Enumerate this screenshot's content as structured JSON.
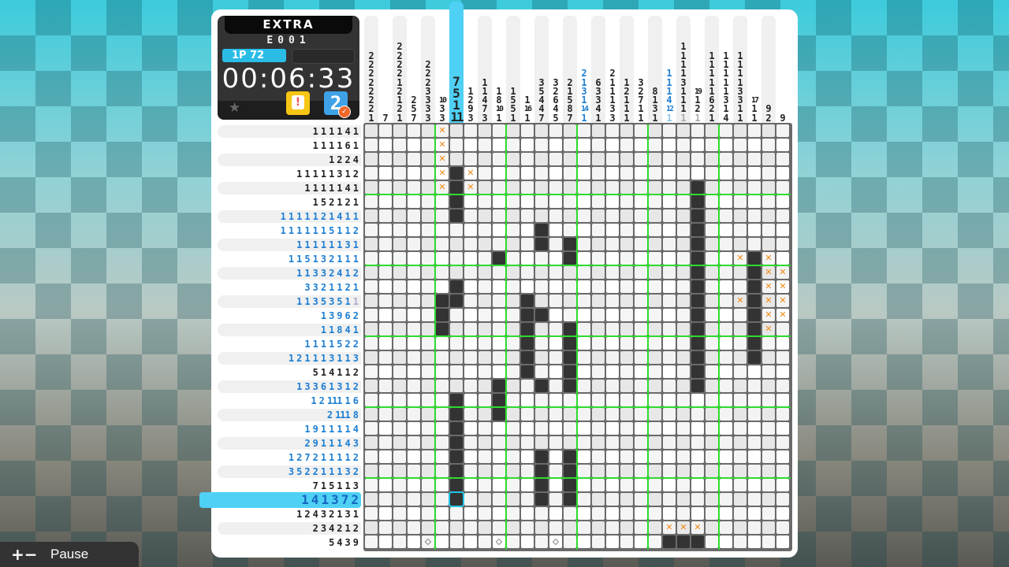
{
  "header": {
    "mode": "EXTRA",
    "puzzle_id": "E001",
    "player": "1P  72",
    "timer": "00:06:33",
    "icons": [
      "star-icon",
      "grid-overview-icon",
      "hint-icon",
      "check-icon"
    ],
    "check_icon_glyph": "2",
    "hint_icon_glyph": "!"
  },
  "colors": {
    "accent": "#4fd0f5",
    "filled": "#333333",
    "cross": "#f08a14",
    "guide": "#2edb2e",
    "clue_blue": "#1d7ed2"
  },
  "column_clues": [
    {
      "nums": [
        "2",
        "2",
        "2",
        "2",
        "2",
        "2",
        "2",
        "1"
      ],
      "color": "black"
    },
    {
      "nums": [
        "7"
      ],
      "color": "black"
    },
    {
      "nums": [
        "2",
        "2",
        "2",
        "2",
        "1",
        "2",
        "1",
        "2",
        "1"
      ],
      "color": "black"
    },
    {
      "nums": [
        "2",
        "5",
        "7"
      ],
      "color": "black"
    },
    {
      "nums": [
        "2",
        "2",
        "2",
        "3",
        "3",
        "3",
        "3"
      ],
      "color": "black"
    },
    {
      "nums": [
        "10",
        "3",
        "3"
      ],
      "color": "black"
    },
    {
      "nums": [
        "7",
        "5",
        "1",
        "11"
      ],
      "color": "black",
      "highlighted": true
    },
    {
      "nums": [
        "1",
        "2",
        "9",
        "3"
      ],
      "color": "black"
    },
    {
      "nums": [
        "1",
        "1",
        "4",
        "7",
        "3"
      ],
      "color": "black"
    },
    {
      "nums": [
        "1",
        "8",
        "10",
        "1"
      ],
      "color": "black"
    },
    {
      "nums": [
        "1",
        "5",
        "5",
        "1"
      ],
      "color": "black"
    },
    {
      "nums": [
        "1",
        "16",
        "1"
      ],
      "color": "black"
    },
    {
      "nums": [
        "3",
        "5",
        "4",
        "4",
        "7"
      ],
      "color": "black"
    },
    {
      "nums": [
        "3",
        "2",
        "6",
        "4",
        "5"
      ],
      "color": "black"
    },
    {
      "nums": [
        "2",
        "1",
        "5",
        "8",
        "7"
      ],
      "color": "black"
    },
    {
      "nums": [
        "2",
        "1",
        "3",
        "1",
        "14",
        "1"
      ],
      "color": "blue"
    },
    {
      "nums": [
        "6",
        "3",
        "3",
        "4",
        "1"
      ],
      "color": "black"
    },
    {
      "nums": [
        "2",
        "1",
        "1",
        "1",
        "3",
        "3"
      ],
      "color": "black"
    },
    {
      "nums": [
        "1",
        "2",
        "1",
        "1",
        "1"
      ],
      "color": "black"
    },
    {
      "nums": [
        "3",
        "2",
        "7",
        "1",
        "1"
      ],
      "color": "black"
    },
    {
      "nums": [
        "8",
        "1",
        "3",
        "1"
      ],
      "color": "black"
    },
    {
      "nums": [
        "1",
        "1",
        "1",
        "4",
        "12",
        "1"
      ],
      "color": "blue",
      "dim_last": true
    },
    {
      "nums": [
        "1",
        "1",
        "1",
        "1",
        "3",
        "1",
        "1",
        "1",
        "1"
      ],
      "color": "black",
      "dim_last": true
    },
    {
      "nums": [
        "19",
        "1",
        "2",
        "1"
      ],
      "color": "black",
      "dim_last": true
    },
    {
      "nums": [
        "1",
        "1",
        "1",
        "1",
        "1",
        "6",
        "2",
        "1"
      ],
      "color": "black"
    },
    {
      "nums": [
        "1",
        "1",
        "1",
        "1",
        "1",
        "3",
        "1",
        "4"
      ],
      "color": "black"
    },
    {
      "nums": [
        "1",
        "1",
        "1",
        "1",
        "3",
        "3",
        "1",
        "1"
      ],
      "color": "black"
    },
    {
      "nums": [
        "17",
        "1",
        "1"
      ],
      "color": "black"
    },
    {
      "nums": [
        "9",
        "2"
      ],
      "color": "black"
    },
    {
      "nums": [
        "9"
      ],
      "color": "black"
    }
  ],
  "row_clues": [
    {
      "nums": [
        "1",
        "1",
        "1",
        "1",
        "4",
        "1"
      ],
      "color": "black"
    },
    {
      "nums": [
        "1",
        "1",
        "1",
        "1",
        "6",
        "1"
      ],
      "color": "black"
    },
    {
      "nums": [
        "1",
        "2",
        "2",
        "4"
      ],
      "color": "black"
    },
    {
      "nums": [
        "1",
        "1",
        "1",
        "1",
        "1",
        "3",
        "1",
        "2"
      ],
      "color": "black"
    },
    {
      "nums": [
        "1",
        "1",
        "1",
        "1",
        "1",
        "4",
        "1"
      ],
      "color": "black"
    },
    {
      "nums": [
        "1",
        "5",
        "2",
        "1",
        "2",
        "1"
      ],
      "color": "black"
    },
    {
      "nums": [
        "1",
        "1",
        "1",
        "1",
        "1",
        "2",
        "1",
        "4",
        "1",
        "1"
      ],
      "color": "blue"
    },
    {
      "nums": [
        "1",
        "1",
        "1",
        "1",
        "1",
        "1",
        "5",
        "1",
        "1",
        "2"
      ],
      "color": "blue"
    },
    {
      "nums": [
        "1",
        "1",
        "1",
        "1",
        "1",
        "1",
        "3",
        "1"
      ],
      "color": "blue"
    },
    {
      "nums": [
        "1",
        "1",
        "5",
        "1",
        "3",
        "2",
        "1",
        "1",
        "1"
      ],
      "color": "blue"
    },
    {
      "nums": [
        "1",
        "1",
        "3",
        "3",
        "2",
        "4",
        "1",
        "2"
      ],
      "color": "blue"
    },
    {
      "nums": [
        "3",
        "3",
        "2",
        "1",
        "1",
        "2",
        "1"
      ],
      "color": "blue"
    },
    {
      "nums": [
        "1",
        "1",
        "3",
        "5",
        "3",
        "5",
        "1",
        "1"
      ],
      "color": "blue",
      "dim_last": true
    },
    {
      "nums": [
        "1",
        "3",
        "9",
        "6",
        "2"
      ],
      "color": "blue"
    },
    {
      "nums": [
        "1",
        "1",
        "8",
        "4",
        "1"
      ],
      "color": "blue"
    },
    {
      "nums": [
        "1",
        "1",
        "1",
        "1",
        "5",
        "2",
        "2"
      ],
      "color": "blue"
    },
    {
      "nums": [
        "1",
        "2",
        "1",
        "1",
        "1",
        "3",
        "1",
        "1",
        "3"
      ],
      "color": "blue"
    },
    {
      "nums": [
        "5",
        "1",
        "4",
        "1",
        "1",
        "2"
      ],
      "color": "black"
    },
    {
      "nums": [
        "1",
        "3",
        "3",
        "6",
        "1",
        "3",
        "1",
        "2"
      ],
      "color": "blue"
    },
    {
      "nums": [
        "1",
        "2",
        "11",
        "1",
        "1",
        "6"
      ],
      "color": "blue"
    },
    {
      "nums": [
        "2",
        "11",
        "1",
        "8"
      ],
      "color": "blue"
    },
    {
      "nums": [
        "1",
        "9",
        "1",
        "1",
        "1",
        "1",
        "4"
      ],
      "color": "blue"
    },
    {
      "nums": [
        "2",
        "9",
        "1",
        "1",
        "1",
        "4",
        "3"
      ],
      "color": "blue"
    },
    {
      "nums": [
        "1",
        "2",
        "7",
        "2",
        "1",
        "1",
        "1",
        "1",
        "2"
      ],
      "color": "blue"
    },
    {
      "nums": [
        "3",
        "5",
        "2",
        "2",
        "1",
        "1",
        "1",
        "3",
        "2"
      ],
      "color": "blue"
    },
    {
      "nums": [
        "7",
        "1",
        "5",
        "1",
        "1",
        "3"
      ],
      "color": "black"
    },
    {
      "nums": [
        "1",
        "4",
        "1",
        "3",
        "7",
        "2"
      ],
      "color": "blue",
      "highlighted": true
    },
    {
      "nums": [
        "1",
        "2",
        "4",
        "3",
        "2",
        "1",
        "3",
        "1"
      ],
      "color": "black"
    },
    {
      "nums": [
        "2",
        "3",
        "4",
        "2",
        "1",
        "2"
      ],
      "color": "black"
    },
    {
      "nums": [
        "5",
        "4",
        "3",
        "9"
      ],
      "color": "black"
    }
  ],
  "grid": {
    "size": 30,
    "filled": [
      [
        4,
        7
      ],
      [
        5,
        7
      ],
      [
        6,
        7
      ],
      [
        7,
        7
      ],
      [
        5,
        24
      ],
      [
        6,
        24
      ],
      [
        7,
        24
      ],
      [
        8,
        24
      ],
      [
        8,
        13
      ],
      [
        9,
        13
      ],
      [
        9,
        15
      ],
      [
        9,
        24
      ],
      [
        10,
        10
      ],
      [
        10,
        15
      ],
      [
        10,
        24
      ],
      [
        10,
        28
      ],
      [
        11,
        24
      ],
      [
        11,
        28
      ],
      [
        12,
        7
      ],
      [
        12,
        24
      ],
      [
        12,
        28
      ],
      [
        13,
        6
      ],
      [
        13,
        7
      ],
      [
        13,
        12
      ],
      [
        13,
        24
      ],
      [
        13,
        28
      ],
      [
        14,
        6
      ],
      [
        14,
        12
      ],
      [
        14,
        13
      ],
      [
        14,
        24
      ],
      [
        14,
        28
      ],
      [
        15,
        6
      ],
      [
        15,
        12
      ],
      [
        15,
        15
      ],
      [
        15,
        24
      ],
      [
        15,
        28
      ],
      [
        16,
        12
      ],
      [
        16,
        15
      ],
      [
        16,
        24
      ],
      [
        16,
        28
      ],
      [
        17,
        12
      ],
      [
        17,
        15
      ],
      [
        17,
        24
      ],
      [
        17,
        28
      ],
      [
        18,
        12
      ],
      [
        18,
        15
      ],
      [
        18,
        24
      ],
      [
        19,
        10
      ],
      [
        19,
        13
      ],
      [
        19,
        15
      ],
      [
        19,
        24
      ],
      [
        20,
        7
      ],
      [
        20,
        10
      ],
      [
        21,
        7
      ],
      [
        21,
        10
      ],
      [
        22,
        7
      ],
      [
        23,
        7
      ],
      [
        24,
        7
      ],
      [
        24,
        13
      ],
      [
        24,
        15
      ],
      [
        25,
        7
      ],
      [
        25,
        13
      ],
      [
        25,
        15
      ],
      [
        26,
        7
      ],
      [
        26,
        13
      ],
      [
        26,
        15
      ],
      [
        27,
        7
      ],
      [
        27,
        13
      ],
      [
        27,
        15
      ],
      [
        30,
        22
      ],
      [
        30,
        23
      ],
      [
        30,
        24
      ]
    ],
    "crossed": [
      [
        1,
        6
      ],
      [
        2,
        6
      ],
      [
        3,
        6
      ],
      [
        4,
        6
      ],
      [
        5,
        6
      ],
      [
        4,
        8
      ],
      [
        5,
        8
      ],
      [
        10,
        27
      ],
      [
        10,
        29
      ],
      [
        11,
        29
      ],
      [
        11,
        30
      ],
      [
        12,
        29
      ],
      [
        12,
        30
      ],
      [
        13,
        27
      ],
      [
        13,
        29
      ],
      [
        13,
        30
      ],
      [
        14,
        29
      ],
      [
        14,
        30
      ],
      [
        15,
        29
      ],
      [
        29,
        22
      ],
      [
        29,
        23
      ],
      [
        29,
        24
      ]
    ],
    "marked": [
      [
        30,
        5
      ],
      [
        30,
        10
      ],
      [
        30,
        14
      ]
    ],
    "cursor": [
      27,
      7
    ]
  },
  "footer": {
    "zoom_icon": "+−",
    "pause_label": "Pause"
  }
}
